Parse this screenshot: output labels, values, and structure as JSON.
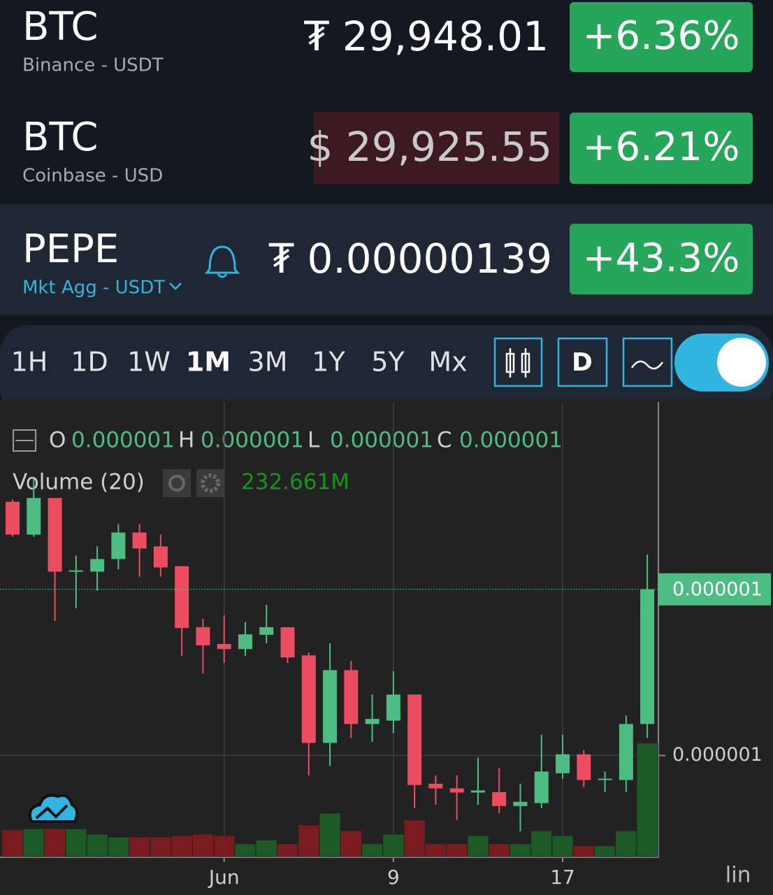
{
  "tickers": [
    {
      "symbol": "BTC",
      "market": "Binance - USDT",
      "price": "₮ 29,948.01",
      "change": "+6.36%"
    },
    {
      "symbol": "BTC",
      "market": "Coinbase - USD",
      "price": "$ 29,925.55",
      "change": "+6.21%"
    },
    {
      "symbol": "PEPE",
      "market": "Mkt Agg - USDT",
      "price": "₮ 0.00000139",
      "change": "+43.3%"
    }
  ],
  "toolbar": {
    "ranges": [
      "1H",
      "1D",
      "1W",
      "1M",
      "3M",
      "1Y",
      "5Y",
      "Mx"
    ],
    "interval": "D"
  },
  "chart_data": {
    "type": "candlestick",
    "ohlc_legend": [
      {
        "label": "O",
        "value": "0.000001"
      },
      {
        "label": "H",
        "value": "0.000001"
      },
      {
        "label": "L",
        "value": "0.000001"
      },
      {
        "label": "C",
        "value": "0.000001"
      }
    ],
    "categories": [
      null,
      null,
      null,
      null,
      null,
      null,
      null,
      null,
      null,
      null,
      "Jun",
      null,
      null,
      null,
      null,
      null,
      null,
      null,
      "9",
      null,
      null,
      null,
      null,
      null,
      null,
      null,
      "17",
      null,
      null,
      null,
      null
    ],
    "open": [
      1.603e-06,
      1.525e-06,
      1.612e-06,
      1.437e-06,
      1.437e-06,
      1.467e-06,
      1.53e-06,
      1.497e-06,
      1.45e-06,
      1.305e-06,
      1.265e-06,
      1.253e-06,
      1.287e-06,
      1.305e-06,
      1.238e-06,
      1.03e-06,
      1.203e-06,
      1.075e-06,
      1.083e-06,
      1.145e-06,
      9.33e-07,
      9.22e-07,
      9.12e-07,
      9.13e-07,
      8.8e-07,
      8.87e-07,
      9.58e-07,
      1.003e-06,
      9.42e-07,
      9.42e-07,
      1.075e-06
    ],
    "high": [
      1.608e-06,
      1.658e-06,
      1.612e-06,
      1.475e-06,
      1.497e-06,
      1.55e-06,
      1.55e-06,
      1.525e-06,
      1.45e-06,
      1.325e-06,
      1.333e-06,
      1.317e-06,
      1.358e-06,
      1.305e-06,
      1.245e-06,
      1.267e-06,
      1.225e-06,
      1.145e-06,
      1.2e-06,
      1.145e-06,
      9.53e-07,
      9.53e-07,
      9.95e-07,
      9.7e-07,
      9.33e-07,
      1.05e-06,
      1.05e-06,
      1.013e-06,
      9.62e-07,
      1.095e-06,
      1.478e-06
    ],
    "low": [
      1.52e-06,
      1.52e-06,
      1.32e-06,
      1.35e-06,
      1.392e-06,
      1.442e-06,
      1.425e-06,
      1.425e-06,
      1.237e-06,
      1.195e-06,
      1.22e-06,
      1.237e-06,
      1.267e-06,
      1.22e-06,
      9.53e-07,
      9.75e-07,
      1.042e-06,
      1.033e-06,
      1.053e-06,
      8.75e-07,
      8.83e-07,
      8.47e-07,
      8.83e-07,
      8.63e-07,
      8.2e-07,
      8.75e-07,
      9.45e-07,
      9.25e-07,
      9.13e-07,
      9.13e-07,
      1.042e-06
    ],
    "close": [
      1.525e-06,
      1.612e-06,
      1.437e-06,
      1.44e-06,
      1.467e-06,
      1.53e-06,
      1.492e-06,
      1.447e-06,
      1.303e-06,
      1.262e-06,
      1.253e-06,
      1.288e-06,
      1.305e-06,
      1.233e-06,
      1.03e-06,
      1.203e-06,
      1.075e-06,
      1.087e-06,
      1.145e-06,
      9.3e-07,
      9.22e-07,
      9.12e-07,
      9.17e-07,
      8.8e-07,
      8.9e-07,
      9.62e-07,
      1.003e-06,
      9.42e-07,
      9.45e-07,
      1.075e-06,
      1.395e-06
    ],
    "up_color": "#4dbd84",
    "down_color": "#ec4d60",
    "volume": {
      "name": "Volume (20)",
      "value_label": "232.661M",
      "axis": "y2",
      "up_color": "#1d5a27",
      "down_color": "#7a1b1f",
      "values": [
        55,
        57,
        57,
        57,
        46,
        40,
        40,
        40,
        43,
        46,
        43,
        26,
        34,
        26,
        65,
        89,
        53,
        26,
        46,
        75,
        26,
        26,
        43,
        26,
        26,
        53,
        43,
        22,
        22,
        53,
        232.661
      ]
    },
    "ylim": [
      7.6e-07,
      1.84e-06
    ],
    "yticks": [
      {
        "value": 1e-06,
        "label": "0.000001"
      }
    ],
    "y2lim": [
      0,
      933
    ],
    "last_price": {
      "value": 1.395e-06,
      "label": "0.000001"
    },
    "scale": "lin",
    "grid": true
  }
}
